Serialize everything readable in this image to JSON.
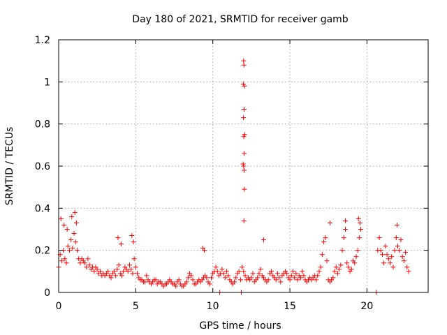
{
  "chart_data": {
    "type": "scatter",
    "title": "Day 180 of 2021, SRMTID for receiver gamb",
    "xlabel": "GPS time / hours",
    "ylabel": "SRMTID / TECUs",
    "xlim": [
      0,
      23.97
    ],
    "ylim": [
      0,
      1.2
    ],
    "x_ticks": [
      0,
      5,
      10,
      15,
      20
    ],
    "y_ticks": [
      0,
      0.2,
      0.4,
      0.6,
      0.8,
      1,
      1.2
    ],
    "x_tick_labels": [
      "0",
      "5",
      "10",
      "15",
      "20"
    ],
    "y_tick_labels": [
      "0",
      "0.2",
      "0.4",
      "0.6",
      "0.8",
      "1",
      "1.2"
    ],
    "grid": true,
    "marker": "+",
    "color": "#ff0000",
    "series": [
      {
        "name": "SRMTID",
        "x": [
          0.0,
          0.1,
          0.2,
          0.3,
          0.4,
          0.5,
          0.6,
          0.7,
          0.8,
          0.9,
          1.0,
          1.1,
          1.2,
          1.3,
          1.4,
          1.5,
          1.6,
          1.7,
          1.8,
          1.9,
          2.0,
          2.1,
          2.2,
          2.3,
          2.4,
          2.5,
          2.6,
          2.7,
          2.8,
          2.9,
          3.0,
          3.1,
          3.2,
          3.3,
          3.4,
          3.5,
          3.6,
          3.7,
          3.8,
          3.9,
          4.0,
          4.1,
          4.2,
          4.3,
          4.4,
          4.5,
          4.6,
          4.7,
          4.8,
          4.9,
          5.0,
          5.1,
          5.2,
          5.3,
          5.4,
          5.5,
          5.6,
          5.7,
          5.8,
          5.9,
          6.0,
          6.1,
          6.2,
          6.3,
          6.4,
          6.5,
          6.6,
          6.7,
          6.8,
          6.9,
          7.0,
          7.1,
          7.2,
          7.3,
          7.4,
          7.5,
          7.6,
          7.7,
          7.8,
          7.9,
          8.0,
          8.1,
          8.2,
          8.3,
          8.4,
          8.5,
          8.6,
          8.7,
          8.8,
          8.9,
          9.0,
          9.1,
          9.2,
          9.3,
          9.4,
          9.5,
          9.6,
          9.7,
          9.8,
          9.9,
          10.0,
          10.1,
          10.2,
          10.3,
          10.4,
          10.5,
          10.6,
          10.7,
          10.8,
          10.9,
          11.0,
          11.1,
          11.2,
          11.3,
          11.4,
          11.5,
          11.6,
          11.7,
          11.8,
          11.9,
          12.0,
          12.1,
          12.2,
          12.3,
          12.4,
          12.5,
          12.6,
          12.7,
          12.8,
          12.9,
          13.0,
          13.1,
          13.2,
          13.3,
          13.4,
          13.5,
          13.6,
          13.7,
          13.8,
          13.9,
          14.0,
          14.1,
          14.2,
          14.3,
          14.4,
          14.5,
          14.6,
          14.7,
          14.8,
          14.9,
          15.0,
          15.1,
          15.2,
          15.3,
          15.4,
          15.5,
          15.6,
          15.7,
          15.8,
          15.9,
          16.0,
          16.1,
          16.2,
          16.3,
          16.4,
          16.5,
          16.6,
          16.7,
          16.8,
          16.9,
          17.0,
          17.1,
          17.2,
          17.3,
          17.4,
          17.5,
          17.6,
          17.7,
          17.8,
          17.9,
          18.0,
          18.1,
          18.2,
          18.3,
          18.4,
          18.5,
          18.6,
          18.7,
          18.8,
          18.9,
          19.0,
          19.1,
          19.2,
          19.3,
          19.4,
          19.5,
          19.6,
          20.7,
          20.8,
          20.9,
          21.0,
          21.1,
          21.2,
          21.3,
          21.4,
          21.5,
          21.6,
          21.7,
          21.8,
          21.9,
          22.0,
          22.1,
          22.2,
          22.3,
          22.4,
          22.5,
          22.6,
          22.7,
          0.15,
          0.35,
          0.55,
          0.85,
          1.05,
          1.15,
          3.85,
          4.05,
          4.75,
          4.85,
          9.35,
          9.45,
          12.0,
          12.02,
          11.98,
          12.05,
          12.03,
          11.99,
          12.06,
          12.01,
          12.04,
          11.97,
          12.0,
          12.03,
          12.05,
          12.02,
          13.3,
          17.6,
          18.6,
          19.45,
          19.55,
          21.95,
          10.45,
          11.85,
          20.6
        ],
        "y": [
          0.12,
          0.18,
          0.15,
          0.2,
          0.16,
          0.14,
          0.22,
          0.2,
          0.25,
          0.21,
          0.28,
          0.24,
          0.2,
          0.16,
          0.14,
          0.16,
          0.15,
          0.14,
          0.12,
          0.16,
          0.13,
          0.11,
          0.12,
          0.1,
          0.12,
          0.11,
          0.09,
          0.1,
          0.08,
          0.09,
          0.08,
          0.09,
          0.1,
          0.08,
          0.07,
          0.09,
          0.1,
          0.08,
          0.11,
          0.13,
          0.09,
          0.08,
          0.1,
          0.12,
          0.11,
          0.1,
          0.13,
          0.11,
          0.09,
          0.16,
          0.12,
          0.09,
          0.07,
          0.06,
          0.06,
          0.05,
          0.05,
          0.08,
          0.06,
          0.05,
          0.04,
          0.05,
          0.06,
          0.06,
          0.04,
          0.05,
          0.05,
          0.04,
          0.03,
          0.04,
          0.04,
          0.05,
          0.06,
          0.05,
          0.04,
          0.04,
          0.03,
          0.05,
          0.06,
          0.04,
          0.03,
          0.03,
          0.04,
          0.05,
          0.07,
          0.09,
          0.08,
          0.06,
          0.04,
          0.04,
          0.05,
          0.06,
          0.05,
          0.06,
          0.07,
          0.08,
          0.07,
          0.05,
          0.04,
          0.07,
          0.09,
          0.1,
          0.12,
          0.1,
          0.08,
          0.09,
          0.11,
          0.09,
          0.07,
          0.1,
          0.08,
          0.06,
          0.05,
          0.04,
          0.05,
          0.07,
          0.09,
          0.1,
          0.06,
          0.12,
          0.1,
          0.08,
          0.06,
          0.07,
          0.06,
          0.07,
          0.09,
          0.05,
          0.06,
          0.07,
          0.09,
          0.11,
          0.08,
          0.07,
          0.06,
          0.05,
          0.06,
          0.09,
          0.1,
          0.08,
          0.07,
          0.06,
          0.09,
          0.07,
          0.05,
          0.08,
          0.09,
          0.1,
          0.09,
          0.07,
          0.06,
          0.08,
          0.1,
          0.07,
          0.09,
          0.06,
          0.08,
          0.07,
          0.1,
          0.08,
          0.06,
          0.05,
          0.06,
          0.07,
          0.06,
          0.07,
          0.08,
          0.06,
          0.08,
          0.1,
          0.12,
          0.18,
          0.24,
          0.26,
          0.15,
          0.06,
          0.05,
          0.06,
          0.07,
          0.1,
          0.12,
          0.09,
          0.11,
          0.13,
          0.2,
          0.26,
          0.3,
          0.14,
          0.12,
          0.1,
          0.11,
          0.15,
          0.14,
          0.17,
          0.2,
          0.26,
          0.3,
          0.2,
          0.26,
          0.2,
          0.18,
          0.14,
          0.22,
          0.18,
          0.16,
          0.14,
          0.17,
          0.12,
          0.2,
          0.26,
          0.22,
          0.2,
          0.25,
          0.17,
          0.15,
          0.19,
          0.12,
          0.1,
          0.35,
          0.32,
          0.3,
          0.36,
          0.38,
          0.33,
          0.26,
          0.23,
          0.27,
          0.24,
          0.21,
          0.2,
          1.1,
          1.08,
          0.99,
          0.98,
          0.87,
          0.83,
          0.75,
          0.74,
          0.66,
          0.61,
          0.6,
          0.58,
          0.49,
          0.34,
          0.25,
          0.33,
          0.34,
          0.35,
          0.33,
          0.32,
          0.0,
          0.0,
          0.0
        ]
      }
    ]
  }
}
